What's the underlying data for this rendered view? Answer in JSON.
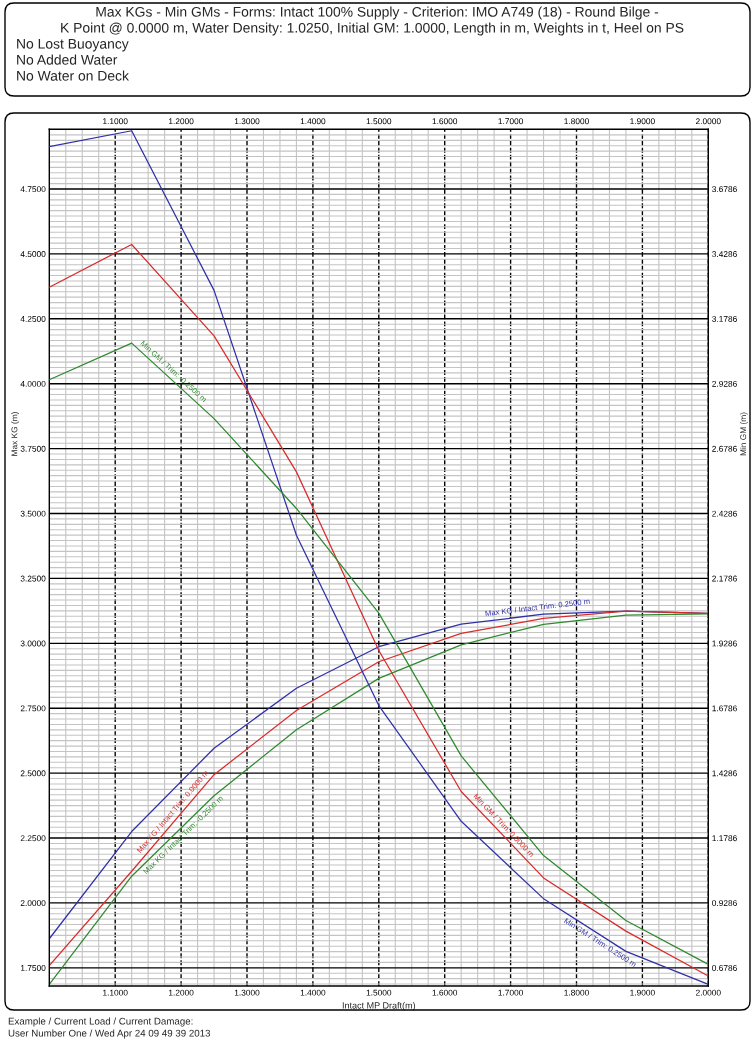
{
  "chart_data": {
    "type": "line",
    "title": "Max KGs - Min GMs - Forms: Intact 100% Supply - Criterion: IMO A749 (18) - Round Bilge -",
    "subtitle": "K Point @ 0.0000 m, Water Density: 1.0250, Initial GM: 1.0000, Length in m, Weights in t, Heel on PS",
    "annotations": [
      "No Lost Buoyancy",
      "No Added Water",
      "No Water on Deck",
      "Example / Current Load / Current Damage:",
      "User Number One / Wed Apr 24 09 49 39 2013"
    ],
    "xlabel": "Intact MP Draft(m)",
    "ylabel": "Max KG (m)",
    "y2label": "Min GM (m)",
    "x": [
      1.0,
      1.125,
      1.25,
      1.375,
      1.5,
      1.625,
      1.75,
      1.875,
      2.0
    ],
    "series": [
      {
        "name": "Max KG / Intact Trim: 0.2500 m",
        "color": "#3030a8",
        "values": [
          1.862,
          2.275,
          2.596,
          2.827,
          2.987,
          3.074,
          3.112,
          3.124,
          3.115
        ]
      },
      {
        "name": "Max KG / Intact Trim: 0.0000 m",
        "color": "#d82c2c",
        "values": [
          1.759,
          2.122,
          2.494,
          2.741,
          2.929,
          3.038,
          3.096,
          3.124,
          3.115
        ]
      },
      {
        "name": "Max KG / Intact Trim: -0.2500 m",
        "color": "#2f8a2f",
        "values": [
          1.686,
          2.103,
          2.413,
          2.667,
          2.865,
          2.994,
          3.073,
          3.109,
          3.113
        ]
      },
      {
        "name": "Min GM / Trim: 0.2500 m",
        "color": "#3030a8",
        "axis": "y2",
        "values": [
          3.842,
          3.903,
          3.288,
          2.345,
          1.689,
          1.243,
          0.945,
          0.742,
          0.615
        ]
      },
      {
        "name": "Min GM / Trim: 0.0000 m",
        "color": "#d82c2c",
        "axis": "y2",
        "values": [
          3.3,
          3.465,
          3.113,
          2.589,
          1.901,
          1.358,
          1.025,
          0.82,
          0.647
        ]
      },
      {
        "name": "Min GM / Trim: -0.2500 m",
        "color": "#2f8a2f",
        "axis": "y2",
        "values": [
          2.944,
          3.085,
          2.794,
          2.448,
          2.045,
          1.495,
          1.111,
          0.861,
          0.692
        ]
      }
    ],
    "xlim": [
      1.0,
      2.0
    ],
    "xticks": [
      {
        "value": 1.1,
        "label": "1.1000"
      },
      {
        "value": 1.2,
        "label": "1.2000"
      },
      {
        "value": 1.3,
        "label": "1.3000"
      },
      {
        "value": 1.4,
        "label": "1.4000"
      },
      {
        "value": 1.5,
        "label": "1.5000"
      },
      {
        "value": 1.6,
        "label": "1.6000"
      },
      {
        "value": 1.7,
        "label": "1.7000"
      },
      {
        "value": 1.8,
        "label": "1.8000"
      },
      {
        "value": 1.9,
        "label": "1.9000"
      },
      {
        "value": 2.0,
        "label": "2.0000"
      }
    ],
    "x2lim": [
      1.0,
      2.0
    ],
    "x2ticks": [
      {
        "value": 1.1,
        "label": "1.1000"
      },
      {
        "value": 1.2,
        "label": "1.2000"
      },
      {
        "value": 1.3,
        "label": "1.3000"
      },
      {
        "value": 1.4,
        "label": "1.4000"
      },
      {
        "value": 1.5,
        "label": "1.5000"
      },
      {
        "value": 1.6,
        "label": "1.6000"
      },
      {
        "value": 1.7,
        "label": "1.7000"
      },
      {
        "value": 1.8,
        "label": "1.8000"
      },
      {
        "value": 1.9,
        "label": "1.9000"
      },
      {
        "value": 2.0,
        "label": "2.0000"
      }
    ],
    "ylim": [
      1.68,
      4.98
    ],
    "yticks": [
      {
        "value": 1.75,
        "label": "1.7500"
      },
      {
        "value": 2.0,
        "label": "2.0000"
      },
      {
        "value": 2.25,
        "label": "2.2500"
      },
      {
        "value": 2.5,
        "label": "2.5000"
      },
      {
        "value": 2.75,
        "label": "2.7500"
      },
      {
        "value": 3.0,
        "label": "3.0000"
      },
      {
        "value": 3.25,
        "label": "3.2500"
      },
      {
        "value": 3.5,
        "label": "3.5000"
      },
      {
        "value": 3.75,
        "label": "3.7500"
      },
      {
        "value": 4.0,
        "label": "4.0000"
      },
      {
        "value": 4.25,
        "label": "4.2500"
      },
      {
        "value": 4.5,
        "label": "4.5000"
      },
      {
        "value": 4.75,
        "label": "4.7500"
      }
    ],
    "y2lim": [
      0.6086,
      3.9086
    ],
    "y2ticks": [
      {
        "value": 0.6786,
        "label": "0.6786"
      },
      {
        "value": 0.9286,
        "label": "0.9286"
      },
      {
        "value": 1.1786,
        "label": "1.1786"
      },
      {
        "value": 1.4286,
        "label": "1.4286"
      },
      {
        "value": 1.6786,
        "label": "1.6786"
      },
      {
        "value": 1.9286,
        "label": "1.9286"
      },
      {
        "value": 2.1786,
        "label": "2.1786"
      },
      {
        "value": 2.4286,
        "label": "2.4286"
      },
      {
        "value": 2.6786,
        "label": "2.6786"
      },
      {
        "value": 2.9286,
        "label": "2.9286"
      },
      {
        "value": 3.1786,
        "label": "3.1786"
      },
      {
        "value": 3.4286,
        "label": "3.4286"
      },
      {
        "value": 3.6786,
        "label": "3.6786"
      }
    ],
    "grid": true
  }
}
